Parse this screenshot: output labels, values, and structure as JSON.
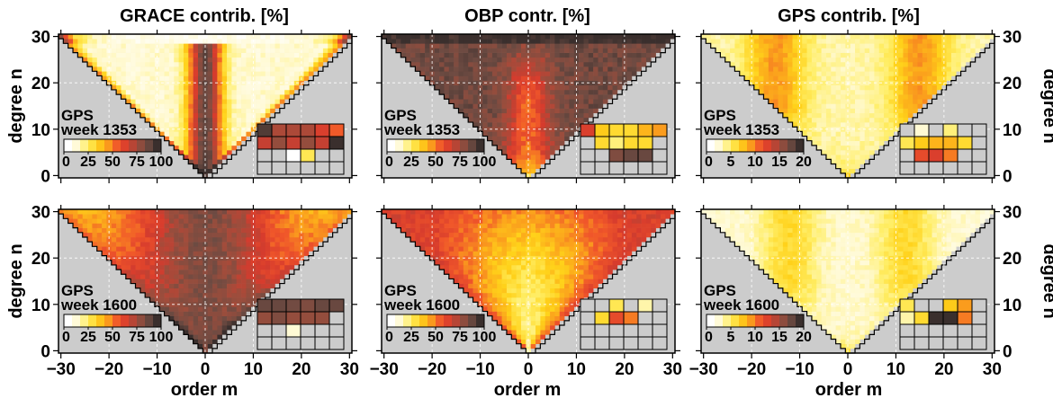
{
  "colors": {
    "panel_background": "#cccccc",
    "colormap": [
      "#ffffff",
      "#fff9cf",
      "#ffee66",
      "#ffd21a",
      "#fba01c",
      "#f0562a",
      "#d63b2d",
      "#9e4d3c",
      "#6e4b42",
      "#3a2f2d"
    ]
  },
  "chart_data": [
    {
      "type": "heatmap",
      "title": "GRACE contrib. [%]",
      "xlabel": "",
      "ylabel": "degree n",
      "annotation_line1": "GPS",
      "annotation_line2": "week 1353",
      "x_range": [
        -30,
        30
      ],
      "y_range": [
        0,
        30
      ],
      "x_ticks": [
        "",
        "",
        "",
        "",
        "",
        "",
        ""
      ],
      "y_ticks": [
        "0",
        "10",
        "20",
        "30"
      ],
      "colorbar_ticks": [
        "0",
        "25",
        "50",
        "75",
        "100"
      ],
      "colorbar_range": [
        0,
        100
      ],
      "field": {
        "type": "polar_low",
        "wing_value": 10,
        "center_value": 80,
        "center_width": 2.5,
        "top_edge_value": 5
      },
      "lowdeg_grid": [
        [
          95,
          75,
          75,
          75,
          65,
          55
        ],
        [
          70,
          80,
          70,
          80,
          70,
          100
        ],
        [
          null,
          null,
          0,
          25,
          null,
          null
        ]
      ]
    },
    {
      "type": "heatmap",
      "title": "OBP contr. [%]",
      "xlabel": "",
      "ylabel": "",
      "annotation_line1": "GPS",
      "annotation_line2": "week 1353",
      "x_range": [
        -30,
        30
      ],
      "y_range": [
        0,
        30
      ],
      "x_ticks": [
        "",
        "",
        "",
        "",
        "",
        "",
        ""
      ],
      "y_ticks": [
        "",
        "",
        "",
        ""
      ],
      "colorbar_ticks": [
        "0",
        "25",
        "50",
        "75",
        "100"
      ],
      "colorbar_range": [
        0,
        100
      ],
      "field": {
        "type": "polar_high",
        "top_value": 100,
        "base_value": 88,
        "center_value": 55,
        "center_width": 3
      },
      "lowdeg_grid": [
        [
          65,
          35,
          30,
          30,
          40,
          45
        ],
        [
          null,
          30,
          20,
          30,
          30,
          null
        ],
        [
          null,
          null,
          85,
          90,
          90,
          null
        ]
      ]
    },
    {
      "type": "heatmap",
      "title": "GPS contrib. [%]",
      "xlabel": "",
      "ylabel": "degree n",
      "annotation_line1": "GPS",
      "annotation_line2": "week 1353",
      "x_range": [
        -30,
        30
      ],
      "y_range": [
        0,
        30
      ],
      "x_ticks": [
        "",
        "",
        "",
        "",
        "",
        "",
        ""
      ],
      "y_ticks": [
        "0",
        "10",
        "20",
        "30"
      ],
      "colorbar_ticks": [
        "0",
        "5",
        "10",
        "15",
        "20"
      ],
      "colorbar_range": [
        0,
        20
      ],
      "field": {
        "type": "gps_low",
        "base_value": 3,
        "band_value": 6,
        "band_m": 15
      },
      "lowdeg_grid": [
        [
          null,
          2,
          null,
          4,
          null,
          null
        ],
        [
          5,
          7,
          8,
          8,
          6,
          null
        ],
        [
          null,
          12,
          13,
          10,
          null,
          null
        ]
      ]
    },
    {
      "type": "heatmap",
      "title": "",
      "xlabel": "order m",
      "ylabel": "degree n",
      "annotation_line1": "GPS",
      "annotation_line2": "week 1600",
      "x_range": [
        -30,
        30
      ],
      "y_range": [
        0,
        30
      ],
      "x_ticks": [
        "−30",
        "−20",
        "−10",
        "0",
        "10",
        "20",
        "30"
      ],
      "y_ticks": [
        "0",
        "10",
        "20",
        "30"
      ],
      "colorbar_ticks": [
        "0",
        "25",
        "50",
        "75",
        "100"
      ],
      "colorbar_range": [
        0,
        100
      ],
      "field": {
        "type": "grace_high",
        "center_value": 85,
        "width": 12,
        "wing_value": 25
      },
      "lowdeg_grid": [
        [
          90,
          90,
          88,
          85,
          90,
          90
        ],
        [
          80,
          85,
          80,
          80,
          80,
          null
        ],
        [
          null,
          null,
          10,
          null,
          null,
          null
        ]
      ]
    },
    {
      "type": "heatmap",
      "title": "",
      "xlabel": "order m",
      "ylabel": "",
      "annotation_line1": "GPS",
      "annotation_line2": "week 1600",
      "x_range": [
        -30,
        30
      ],
      "y_range": [
        0,
        30
      ],
      "x_ticks": [
        "−30",
        "−20",
        "−10",
        "0",
        "10",
        "20",
        "30"
      ],
      "y_ticks": [
        "",
        "",
        "",
        ""
      ],
      "colorbar_ticks": [
        "0",
        "25",
        "50",
        "75",
        "100"
      ],
      "colorbar_range": [
        0,
        100
      ],
      "field": {
        "type": "obp_mid",
        "edge_value": 65,
        "center_value": 18
      },
      "lowdeg_grid": [
        [
          null,
          null,
          25,
          null,
          15,
          null
        ],
        [
          null,
          30,
          60,
          50,
          null,
          null
        ],
        [
          null,
          null,
          null,
          null,
          null,
          null
        ]
      ]
    },
    {
      "type": "heatmap",
      "title": "",
      "xlabel": "order m",
      "ylabel": "degree n",
      "annotation_line1": "GPS",
      "annotation_line2": "week 1600",
      "x_range": [
        -30,
        30
      ],
      "y_range": [
        0,
        30
      ],
      "x_ticks": [
        "−30",
        "−20",
        "−10",
        "0",
        "10",
        "20",
        "30"
      ],
      "y_ticks": [
        "0",
        "10",
        "20",
        "30"
      ],
      "colorbar_ticks": [
        "0",
        "5",
        "10",
        "15",
        "20"
      ],
      "colorbar_range": [
        0,
        20
      ],
      "field": {
        "type": "gps_low",
        "base_value": 2,
        "band_value": 4,
        "band_m": 12
      },
      "lowdeg_grid": [
        [
          5,
          null,
          null,
          7,
          9,
          null
        ],
        [
          3,
          6,
          20,
          20,
          10,
          null
        ],
        [
          null,
          null,
          null,
          null,
          null,
          null
        ]
      ]
    }
  ]
}
